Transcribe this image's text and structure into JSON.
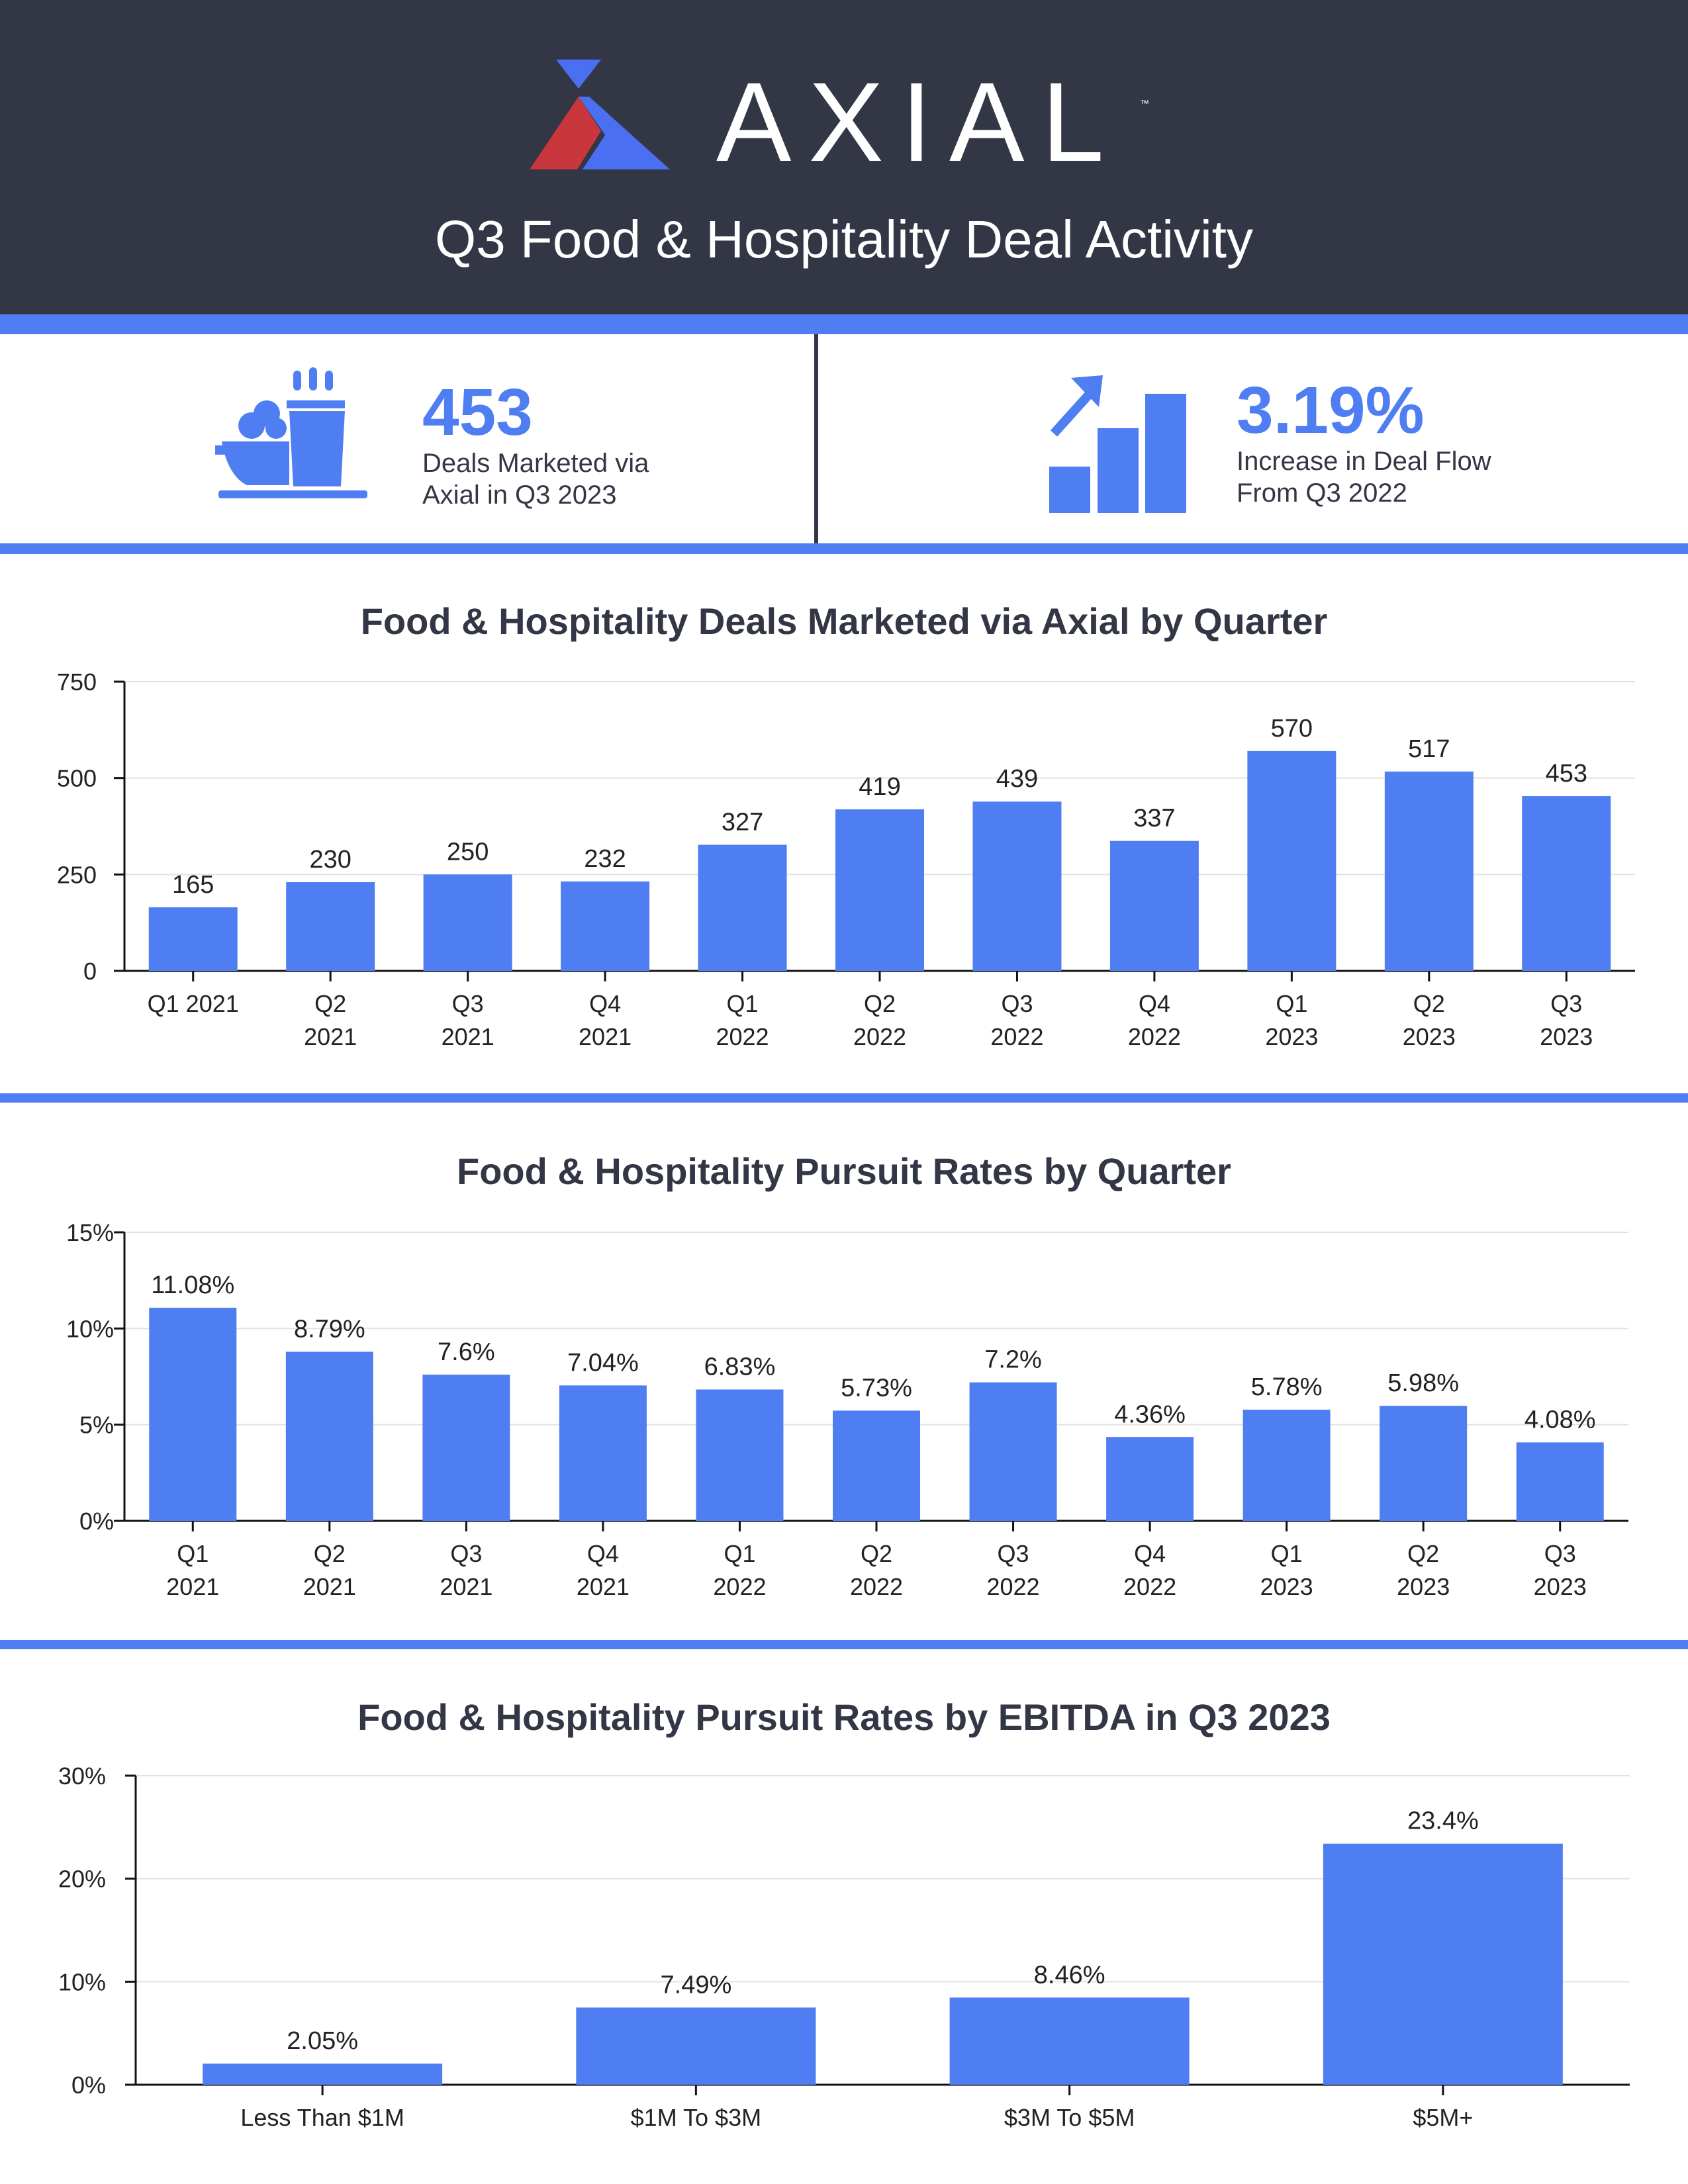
{
  "header": {
    "brand": "AXIAL",
    "trademark": "™",
    "title": "Q3 Food & Hospitality Deal Activity"
  },
  "stats": [
    {
      "icon": "food-bowl-cup-icon",
      "value": "453",
      "description": "Deals Marketed via Axial in Q3 2023"
    },
    {
      "icon": "growth-chart-arrow-icon",
      "value": "3.19%",
      "description": "Increase in Deal Flow From Q3 2022"
    }
  ],
  "colors": {
    "accent": "#4f7ef2",
    "dark": "#333645",
    "logo_red": "#c9373c"
  },
  "chart_data": [
    {
      "type": "bar",
      "title": "Food & Hospitality Deals Marketed via Axial by Quarter",
      "categories": [
        [
          "Q1 2021"
        ],
        [
          "Q2",
          "2021"
        ],
        [
          "Q3",
          "2021"
        ],
        [
          "Q4",
          "2021"
        ],
        [
          "Q1",
          "2022"
        ],
        [
          "Q2",
          "2022"
        ],
        [
          "Q3",
          "2022"
        ],
        [
          "Q4",
          "2022"
        ],
        [
          "Q1",
          "2023"
        ],
        [
          "Q2",
          "2023"
        ],
        [
          "Q3",
          "2023"
        ]
      ],
      "values": [
        165,
        230,
        250,
        232,
        327,
        419,
        439,
        337,
        570,
        517,
        453
      ],
      "labels": [
        "165",
        "230",
        "250",
        "232",
        "327",
        "419",
        "439",
        "337",
        "570",
        "517",
        "453"
      ],
      "yticks": [
        0,
        250,
        500,
        750
      ],
      "ytick_labels": [
        "0",
        "250",
        "500",
        "750"
      ],
      "ylim": [
        0,
        750
      ],
      "grid": true
    },
    {
      "type": "bar",
      "title": "Food & Hospitality Pursuit Rates by Quarter",
      "categories": [
        [
          "Q1",
          "2021"
        ],
        [
          "Q2",
          "2021"
        ],
        [
          "Q3",
          "2021"
        ],
        [
          "Q4",
          "2021"
        ],
        [
          "Q1",
          "2022"
        ],
        [
          "Q2",
          "2022"
        ],
        [
          "Q3",
          "2022"
        ],
        [
          "Q4",
          "2022"
        ],
        [
          "Q1",
          "2023"
        ],
        [
          "Q2",
          "2023"
        ],
        [
          "Q3",
          "2023"
        ]
      ],
      "values": [
        11.08,
        8.79,
        7.6,
        7.04,
        6.83,
        5.73,
        7.2,
        4.36,
        5.78,
        5.98,
        4.08
      ],
      "labels": [
        "11.08%",
        "8.79%",
        "7.6%",
        "7.04%",
        "6.83%",
        "5.73%",
        "7.2%",
        "4.36%",
        "5.78%",
        "5.98%",
        "4.08%"
      ],
      "yticks": [
        0,
        5,
        10,
        15
      ],
      "ytick_labels": [
        "0%",
        "5%",
        "10%",
        "15%"
      ],
      "ylim": [
        0,
        15
      ],
      "grid": true
    },
    {
      "type": "bar",
      "title": "Food & Hospitality Pursuit Rates by EBITDA in Q3 2023",
      "categories": [
        [
          "Less Than $1M"
        ],
        [
          "$1M To $3M"
        ],
        [
          "$3M To $5M"
        ],
        [
          "$5M+"
        ]
      ],
      "values": [
        2.05,
        7.49,
        8.46,
        23.4
      ],
      "labels": [
        "2.05%",
        "7.49%",
        "8.46%",
        "23.4%"
      ],
      "yticks": [
        0,
        10,
        20,
        30
      ],
      "ytick_labels": [
        "0%",
        "10%",
        "20%",
        "30%"
      ],
      "ylim": [
        0,
        30
      ],
      "grid": true
    }
  ]
}
